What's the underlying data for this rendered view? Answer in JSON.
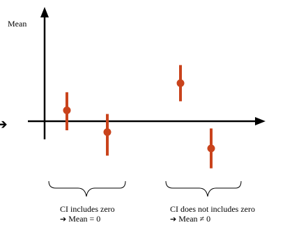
{
  "y_axis_label": "Mean",
  "accent_color": "#c9431c",
  "points": [
    {
      "mean": 0.6,
      "ci_low": -0.5,
      "ci_high": 1.6
    },
    {
      "mean": -0.6,
      "ci_low": -1.9,
      "ci_high": 0.4
    },
    {
      "mean": 2.1,
      "ci_low": 1.1,
      "ci_high": 3.1
    },
    {
      "mean": -1.5,
      "ci_low": -2.6,
      "ci_high": -0.4
    }
  ],
  "groups": [
    {
      "caption": "CI includes zero",
      "conclusion": "Mean = 0",
      "arrow": "➔"
    },
    {
      "caption": "CI does not includes zero",
      "conclusion": "Mean ≠ 0",
      "arrow": "➔"
    }
  ],
  "left_edge_arrow": "➔"
}
